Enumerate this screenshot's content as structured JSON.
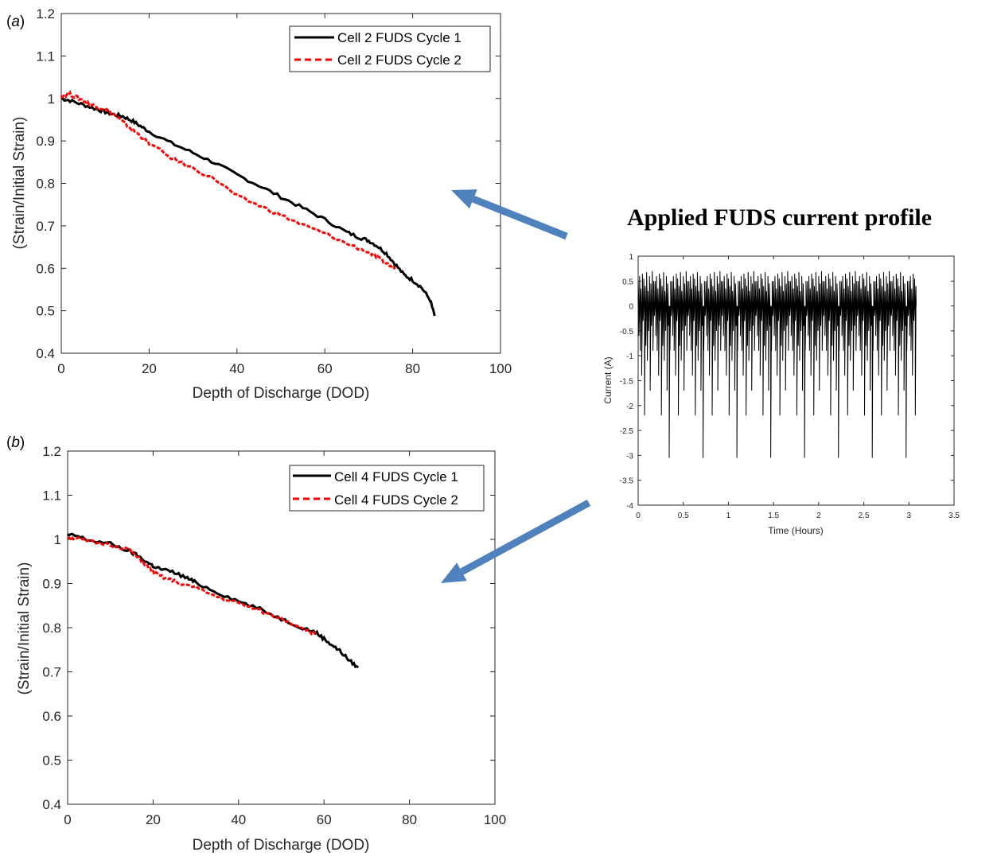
{
  "figure": {
    "inset_title": "Applied FUDS current profile",
    "arrow_color": "#4F81BD"
  },
  "chart_data": [
    {
      "id": "a",
      "type": "line",
      "panel_label": "a",
      "xlabel": "Depth of Discharge (DOD)",
      "ylabel": "(Strain/Initial Strain)",
      "xlim": [
        0,
        100
      ],
      "ylim": [
        0.4,
        1.2
      ],
      "xticks": [
        "0",
        "20",
        "40",
        "60",
        "80",
        "100"
      ],
      "yticks": [
        "0.4",
        "0.5",
        "0.6",
        "0.7",
        "0.8",
        "0.9",
        "1",
        "1.1",
        "1.2"
      ],
      "legend_position": "top-right",
      "series": [
        {
          "name": "Cell 2 FUDS Cycle 1",
          "color": "#000000",
          "style": "solid",
          "x": [
            0,
            2,
            5,
            8,
            10,
            12,
            14,
            16,
            18,
            20,
            25,
            30,
            35,
            40,
            45,
            50,
            55,
            60,
            65,
            68,
            70,
            72,
            74,
            76,
            78,
            80,
            82,
            84,
            85
          ],
          "y": [
            1.0,
            0.995,
            0.985,
            0.975,
            0.968,
            0.962,
            0.958,
            0.948,
            0.935,
            0.922,
            0.895,
            0.872,
            0.848,
            0.82,
            0.795,
            0.768,
            0.742,
            0.715,
            0.685,
            0.672,
            0.665,
            0.652,
            0.635,
            0.61,
            0.585,
            0.572,
            0.555,
            0.525,
            0.488
          ]
        },
        {
          "name": "Cell 2 FUDS Cycle 2",
          "color": "#FF0000",
          "style": "dashed",
          "x": [
            0,
            2,
            4,
            6,
            8,
            10,
            12,
            14,
            16,
            18,
            20,
            25,
            30,
            35,
            40,
            45,
            50,
            55,
            60,
            65,
            70,
            72,
            74,
            76
          ],
          "y": [
            1.005,
            1.01,
            1.0,
            0.99,
            0.98,
            0.975,
            0.962,
            0.945,
            0.928,
            0.912,
            0.895,
            0.86,
            0.835,
            0.81,
            0.77,
            0.748,
            0.725,
            0.702,
            0.682,
            0.658,
            0.638,
            0.625,
            0.612,
            0.598
          ]
        }
      ]
    },
    {
      "id": "b",
      "type": "line",
      "panel_label": "b",
      "xlabel": "Depth of Discharge (DOD)",
      "ylabel": "(Strain/Initial Strain)",
      "xlim": [
        0,
        100
      ],
      "ylim": [
        0.4,
        1.2
      ],
      "xticks": [
        "0",
        "20",
        "40",
        "60",
        "80",
        "100"
      ],
      "yticks": [
        "0.4",
        "0.5",
        "0.6",
        "0.7",
        "0.8",
        "0.9",
        "1",
        "1.1",
        "1.2"
      ],
      "legend_position": "top-right",
      "series": [
        {
          "name": "Cell 4 FUDS Cycle 1",
          "color": "#000000",
          "style": "solid",
          "x": [
            0,
            2,
            5,
            10,
            14,
            16,
            18,
            20,
            22,
            25,
            28,
            30,
            35,
            40,
            45,
            50,
            55,
            58,
            60,
            62,
            64,
            66,
            68
          ],
          "y": [
            1.01,
            1.008,
            0.998,
            0.99,
            0.975,
            0.965,
            0.952,
            0.94,
            0.932,
            0.925,
            0.912,
            0.902,
            0.88,
            0.86,
            0.842,
            0.82,
            0.8,
            0.79,
            0.775,
            0.76,
            0.745,
            0.725,
            0.71
          ]
        },
        {
          "name": "Cell 4 FUDS Cycle 2",
          "color": "#FF0000",
          "style": "dashed",
          "x": [
            0,
            2,
            5,
            10,
            14,
            16,
            18,
            20,
            22,
            25,
            30,
            35,
            40,
            45,
            50,
            55,
            58
          ],
          "y": [
            1.005,
            1.003,
            0.995,
            0.988,
            0.978,
            0.962,
            0.945,
            0.925,
            0.915,
            0.905,
            0.89,
            0.87,
            0.855,
            0.838,
            0.82,
            0.8,
            0.785
          ]
        }
      ]
    },
    {
      "id": "inset",
      "type": "line",
      "xlabel": "Time (Hours)",
      "ylabel": "Current (A)",
      "xlim": [
        0,
        3.5
      ],
      "ylim": [
        -4,
        1
      ],
      "xticks": [
        "0",
        "0.5",
        "1",
        "1.5",
        "2",
        "2.5",
        "3",
        "3.5"
      ],
      "yticks": [
        "-4",
        "-3.5",
        "-3",
        "-2.5",
        "-2",
        "-1.5",
        "-1",
        "-0.5",
        "0",
        "0.5",
        "1"
      ],
      "series": [
        {
          "color": "#000000",
          "style": "solid",
          "period_hours": 0.375,
          "time_range": [
            0,
            3.08
          ],
          "max_current": 0.7,
          "min_current": -3.05,
          "baseline": 0
        }
      ]
    }
  ]
}
